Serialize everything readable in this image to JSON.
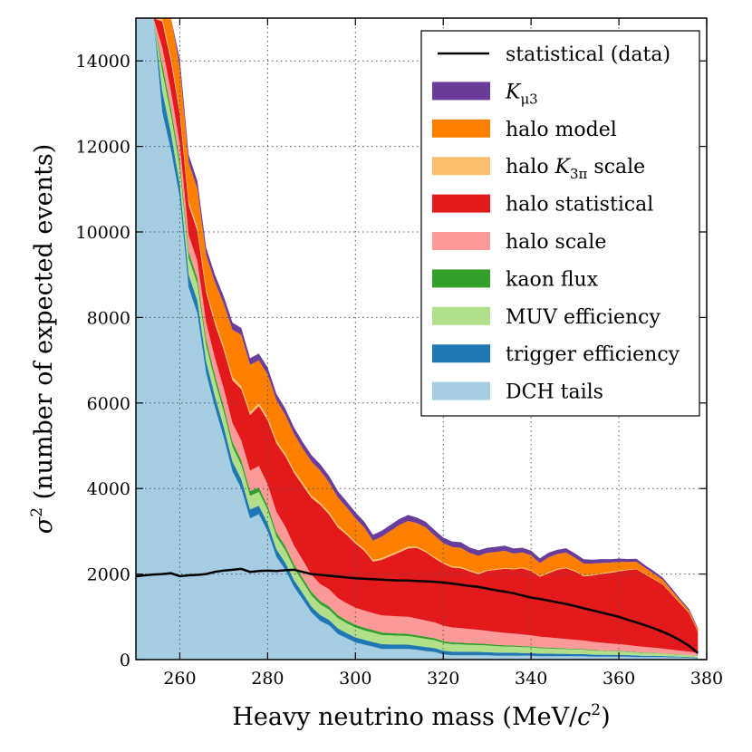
{
  "chart_data": {
    "type": "area",
    "title": "",
    "xlabel": "Heavy neutrino mass (MeV/",
    "xlabel_sym": "c",
    "xlabel_sup": "2",
    "xlabel_end": ")",
    "ylabel_sym": "σ",
    "ylabel_sup": "2",
    "ylabel": " (number of expected events)",
    "xlim": [
      250,
      380
    ],
    "ylim": [
      0,
      15000
    ],
    "grid": true,
    "legend_position": "top-right",
    "xticks": [
      "260",
      "280",
      "300",
      "320",
      "340",
      "360",
      "380"
    ],
    "yticks": [
      "0",
      "2000",
      "4000",
      "6000",
      "8000",
      "10000",
      "12000",
      "14000"
    ],
    "x": [
      250,
      252,
      254,
      256,
      258,
      260,
      262,
      264,
      266,
      268,
      270,
      272,
      274,
      276,
      278,
      280,
      282,
      284,
      286,
      288,
      290,
      292,
      294,
      296,
      298,
      300,
      302,
      304,
      306,
      308,
      310,
      312,
      314,
      316,
      318,
      320,
      322,
      324,
      326,
      328,
      330,
      332,
      334,
      336,
      338,
      340,
      342,
      344,
      346,
      348,
      350,
      352,
      354,
      356,
      358,
      360,
      362,
      364,
      366,
      368,
      370,
      372,
      374,
      376,
      378
    ],
    "stack_series": [
      {
        "name": "DCH tails",
        "label": "DCH tails",
        "color": "#a6cee3",
        "values": [
          15000,
          15000,
          15000,
          12800,
          11900,
          10800,
          8700,
          8100,
          6700,
          5900,
          5200,
          4400,
          4000,
          3300,
          3400,
          3000,
          2400,
          2100,
          1700,
          1400,
          1100,
          900,
          800,
          600,
          500,
          400,
          350,
          300,
          250,
          250,
          250,
          250,
          230,
          200,
          180,
          120,
          100,
          100,
          100,
          100,
          100,
          90,
          90,
          90,
          90,
          90,
          80,
          80,
          80,
          80,
          80,
          80,
          70,
          70,
          70,
          70,
          70,
          60,
          60,
          60,
          60,
          50,
          50,
          40,
          30
        ]
      },
      {
        "name": "trigger efficiency",
        "label": "trigger efficiency",
        "color": "#1f78b4",
        "values": [
          1200,
          900,
          700,
          500,
          400,
          300,
          300,
          300,
          280,
          260,
          250,
          230,
          220,
          210,
          200,
          190,
          180,
          170,
          160,
          150,
          140,
          140,
          130,
          130,
          120,
          120,
          115,
          110,
          110,
          105,
          100,
          100,
          95,
          95,
          90,
          90,
          85,
          85,
          80,
          80,
          75,
          75,
          70,
          70,
          65,
          65,
          60,
          60,
          55,
          55,
          50,
          50,
          45,
          45,
          40,
          40,
          35,
          35,
          30,
          30,
          25,
          25,
          20,
          20,
          15
        ]
      },
      {
        "name": "MUV efficiency",
        "label": "MUV efficiency",
        "color": "#b2df8a",
        "values": [
          600,
          550,
          500,
          450,
          420,
          400,
          390,
          380,
          370,
          360,
          350,
          340,
          330,
          320,
          320,
          310,
          300,
          290,
          280,
          270,
          260,
          250,
          240,
          240,
          230,
          230,
          220,
          220,
          215,
          210,
          205,
          200,
          195,
          190,
          185,
          180,
          175,
          170,
          165,
          160,
          155,
          150,
          145,
          140,
          135,
          130,
          125,
          120,
          115,
          110,
          105,
          100,
          95,
          90,
          85,
          80,
          75,
          70,
          65,
          60,
          55,
          50,
          45,
          40,
          35
        ]
      },
      {
        "name": "kaon flux",
        "label": "kaon flux",
        "color": "#33a02c",
        "values": [
          200,
          190,
          180,
          170,
          160,
          150,
          145,
          140,
          135,
          130,
          125,
          120,
          115,
          110,
          105,
          100,
          96,
          92,
          88,
          84,
          80,
          77,
          74,
          71,
          68,
          65,
          62,
          60,
          58,
          56,
          54,
          52,
          50,
          48,
          46,
          44,
          42,
          40,
          38,
          36,
          34,
          32,
          30,
          28,
          26,
          24,
          22,
          20,
          19,
          18,
          17,
          16,
          15,
          14,
          13,
          12,
          11,
          10,
          9,
          8,
          7,
          6,
          5,
          4,
          3
        ]
      },
      {
        "name": "halo scale",
        "label": "halo scale",
        "color": "#fb9a99",
        "values": [
          400,
          400,
          400,
          400,
          400,
          400,
          400,
          400,
          400,
          400,
          420,
          440,
          460,
          480,
          500,
          500,
          480,
          460,
          440,
          420,
          400,
          400,
          400,
          400,
          400,
          400,
          400,
          400,
          400,
          400,
          400,
          400,
          390,
          380,
          370,
          360,
          350,
          340,
          330,
          320,
          310,
          300,
          290,
          280,
          270,
          260,
          250,
          240,
          230,
          220,
          210,
          200,
          190,
          180,
          170,
          160,
          150,
          140,
          130,
          120,
          110,
          100,
          90,
          80,
          70
        ]
      },
      {
        "name": "halo statistical",
        "label": "halo statistical",
        "color": "#e31a1c",
        "values": [
          300,
          400,
          500,
          600,
          700,
          700,
          700,
          700,
          700,
          800,
          900,
          1000,
          1200,
          1300,
          1400,
          1500,
          1600,
          1650,
          1700,
          1750,
          1800,
          1850,
          1750,
          1650,
          1600,
          1500,
          1400,
          1200,
          1300,
          1400,
          1500,
          1600,
          1650,
          1600,
          1500,
          1450,
          1400,
          1400,
          1350,
          1300,
          1400,
          1450,
          1500,
          1500,
          1550,
          1500,
          1400,
          1500,
          1600,
          1650,
          1600,
          1500,
          1550,
          1600,
          1650,
          1700,
          1750,
          1800,
          1700,
          1600,
          1500,
          1300,
          1100,
          900,
          500
        ]
      },
      {
        "name": "halo K3pi scale",
        "label": "halo ",
        "label_sym": "K",
        "label_sub": "3π",
        "label_end": " scale",
        "color": "#fdbf6f",
        "values": [
          100,
          100,
          100,
          100,
          90,
          90,
          90,
          90,
          80,
          80,
          80,
          80,
          70,
          70,
          70,
          70,
          60,
          60,
          60,
          60,
          50,
          50,
          50,
          50,
          40,
          40,
          40,
          40,
          40,
          40,
          40,
          40,
          30,
          30,
          30,
          30,
          30,
          30,
          30,
          30,
          20,
          20,
          20,
          20,
          20,
          20,
          20,
          20,
          20,
          20,
          20,
          20,
          20,
          20,
          20,
          20,
          10,
          10,
          10,
          10,
          10,
          10,
          10,
          10,
          10
        ]
      },
      {
        "name": "halo model",
        "label": "halo model",
        "color": "#ff7f00",
        "values": [
          300,
          500,
          800,
          1000,
          1000,
          1000,
          900,
          900,
          800,
          900,
          1000,
          1100,
          1200,
          1100,
          1000,
          1000,
          950,
          900,
          850,
          800,
          800,
          750,
          700,
          650,
          600,
          550,
          500,
          450,
          500,
          550,
          600,
          600,
          550,
          550,
          500,
          450,
          450,
          450,
          400,
          400,
          400,
          400,
          400,
          350,
          350,
          350,
          300,
          350,
          350,
          350,
          300,
          280,
          260,
          240,
          220,
          200,
          180,
          160,
          140,
          120,
          100,
          80,
          60,
          50,
          40
        ]
      },
      {
        "name": "K mu3",
        "label": "",
        "label_sym": "K",
        "label_sub": "μ3",
        "label_end": "",
        "color": "#6a3d9a",
        "values": [
          200,
          200,
          200,
          200,
          190,
          190,
          180,
          180,
          170,
          170,
          170,
          170,
          160,
          160,
          160,
          160,
          150,
          150,
          150,
          150,
          150,
          150,
          150,
          150,
          140,
          140,
          140,
          140,
          140,
          140,
          140,
          140,
          130,
          130,
          130,
          130,
          130,
          130,
          130,
          130,
          120,
          120,
          120,
          120,
          110,
          110,
          110,
          110,
          100,
          100,
          100,
          100,
          90,
          90,
          80,
          80,
          70,
          70,
          60,
          60,
          50,
          50,
          40,
          40,
          30
        ]
      }
    ],
    "line_series": {
      "name": "statistical (data)",
      "label": "statistical (data)",
      "color": "#000000",
      "values": [
        1950,
        1970,
        1990,
        2000,
        2020,
        1950,
        1970,
        1980,
        2000,
        2050,
        2080,
        2100,
        2120,
        2050,
        2070,
        2080,
        2070,
        2090,
        2100,
        2050,
        2000,
        1980,
        1960,
        1940,
        1920,
        1900,
        1890,
        1880,
        1870,
        1860,
        1850,
        1850,
        1840,
        1830,
        1820,
        1800,
        1780,
        1750,
        1720,
        1700,
        1660,
        1620,
        1590,
        1550,
        1500,
        1450,
        1420,
        1380,
        1340,
        1300,
        1250,
        1200,
        1150,
        1100,
        1050,
        1000,
        930,
        870,
        800,
        730,
        650,
        560,
        450,
        320,
        150
      ]
    }
  }
}
